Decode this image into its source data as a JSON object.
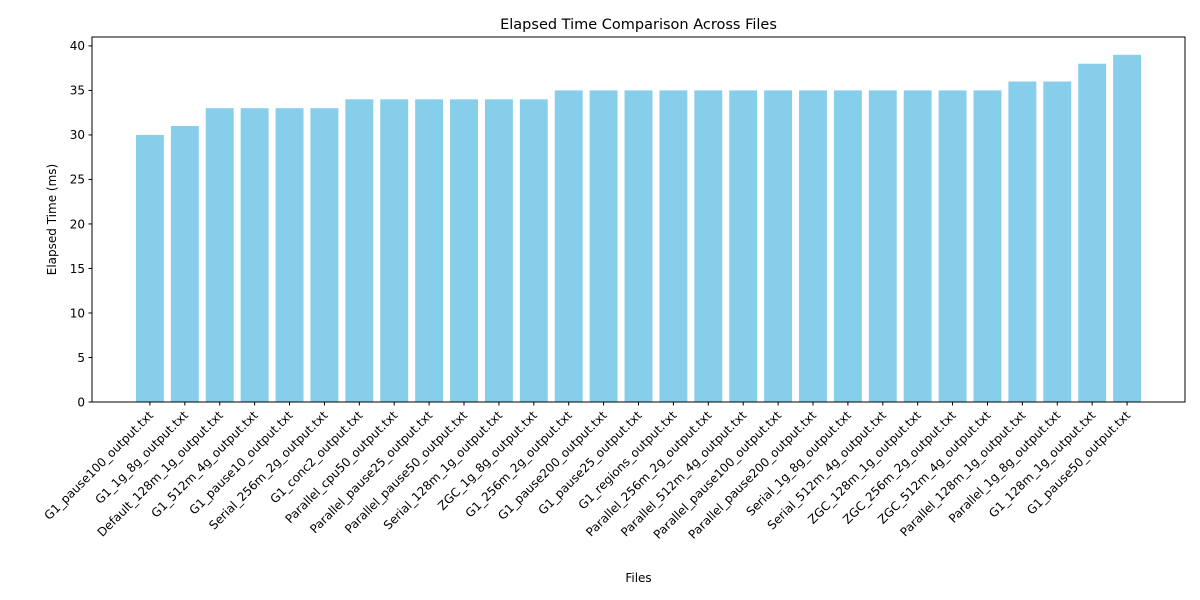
{
  "chart_data": {
    "type": "bar",
    "title": "Elapsed Time Comparison Across Files",
    "xlabel": "Files",
    "ylabel": "Elapsed Time (ms)",
    "ylim": [
      0,
      41
    ],
    "yticks": [
      0,
      5,
      10,
      15,
      20,
      25,
      30,
      35,
      40
    ],
    "grid": false,
    "bar_color": "#87ceeb",
    "categories": [
      "G1_pause100_output.txt",
      "G1_1g_8g_output.txt",
      "Default_128m_1g_output.txt",
      "G1_512m_4g_output.txt",
      "G1_pause10_output.txt",
      "Serial_256m_2g_output.txt",
      "G1_conc2_output.txt",
      "Parallel_cpu50_output.txt",
      "Parallel_pause25_output.txt",
      "Parallel_pause50_output.txt",
      "Serial_128m_1g_output.txt",
      "ZGC_1g_8g_output.txt",
      "G1_256m_2g_output.txt",
      "G1_pause200_output.txt",
      "G1_pause25_output.txt",
      "G1_regions_output.txt",
      "Parallel_256m_2g_output.txt",
      "Parallel_512m_4g_output.txt",
      "Parallel_pause100_output.txt",
      "Parallel_pause200_output.txt",
      "Serial_1g_8g_output.txt",
      "Serial_512m_4g_output.txt",
      "ZGC_128m_1g_output.txt",
      "ZGC_256m_2g_output.txt",
      "ZGC_512m_4g_output.txt",
      "Parallel_128m_1g_output.txt",
      "Parallel_1g_8g_output.txt",
      "G1_128m_1g_output.txt",
      "G1_pause50_output.txt"
    ],
    "values": [
      30,
      31,
      33,
      33,
      33,
      33,
      34,
      34,
      34,
      34,
      34,
      34,
      35,
      35,
      35,
      35,
      35,
      35,
      35,
      35,
      35,
      35,
      35,
      35,
      35,
      36,
      36,
      38,
      39
    ]
  }
}
